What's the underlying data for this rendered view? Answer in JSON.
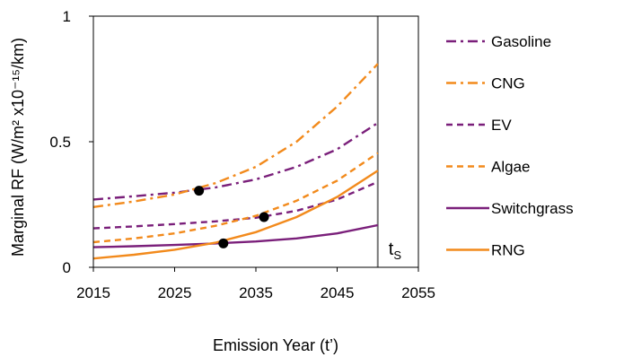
{
  "chart_data": {
    "type": "line",
    "title": "",
    "xlabel": "Emission Year (t’)",
    "ylabel": "Marginal RF (W/m² x10⁻¹⁵/km)",
    "xlim": [
      2015,
      2055
    ],
    "ylim": [
      0,
      1
    ],
    "xticks": [
      "2015",
      "2025",
      "2035",
      "2045",
      "2055"
    ],
    "yticks": [
      "0",
      "0.5",
      "1"
    ],
    "colors": {
      "purple": "#7a1f7a",
      "orange": "#f28a1c"
    },
    "vertical_line": {
      "x": 2050,
      "label": "t",
      "label_sub": "S"
    },
    "series": [
      {
        "name": "Gasoline",
        "color": "#7a1f7a",
        "dash": "dashdot",
        "x": [
          2015,
          2020,
          2025,
          2030,
          2035,
          2040,
          2045,
          2050
        ],
        "y": [
          0.27,
          0.283,
          0.297,
          0.318,
          0.35,
          0.4,
          0.47,
          0.575
        ]
      },
      {
        "name": "CNG",
        "color": "#f28a1c",
        "dash": "dashdot",
        "x": [
          2015,
          2020,
          2025,
          2030,
          2035,
          2040,
          2045,
          2050
        ],
        "y": [
          0.24,
          0.262,
          0.29,
          0.335,
          0.4,
          0.5,
          0.64,
          0.81
        ]
      },
      {
        "name": "EV",
        "color": "#7a1f7a",
        "dash": "dash",
        "x": [
          2015,
          2020,
          2025,
          2030,
          2035,
          2040,
          2045,
          2050
        ],
        "y": [
          0.155,
          0.163,
          0.172,
          0.183,
          0.197,
          0.225,
          0.27,
          0.34
        ]
      },
      {
        "name": "Algae",
        "color": "#f28a1c",
        "dash": "dash",
        "x": [
          2015,
          2020,
          2025,
          2030,
          2035,
          2040,
          2045,
          2050
        ],
        "y": [
          0.1,
          0.115,
          0.135,
          0.165,
          0.205,
          0.265,
          0.345,
          0.455
        ]
      },
      {
        "name": "Switchgrass",
        "color": "#7a1f7a",
        "dash": "solid",
        "x": [
          2015,
          2020,
          2025,
          2030,
          2035,
          2040,
          2045,
          2050
        ],
        "y": [
          0.08,
          0.084,
          0.089,
          0.095,
          0.103,
          0.115,
          0.135,
          0.168
        ]
      },
      {
        "name": "RNG",
        "color": "#f28a1c",
        "dash": "solid",
        "x": [
          2015,
          2020,
          2025,
          2030,
          2035,
          2040,
          2045,
          2050
        ],
        "y": [
          0.035,
          0.05,
          0.07,
          0.098,
          0.14,
          0.2,
          0.28,
          0.385
        ]
      }
    ],
    "markers": [
      {
        "x": 2028,
        "y": 0.305
      },
      {
        "x": 2036,
        "y": 0.2
      },
      {
        "x": 2031,
        "y": 0.095
      }
    ]
  }
}
